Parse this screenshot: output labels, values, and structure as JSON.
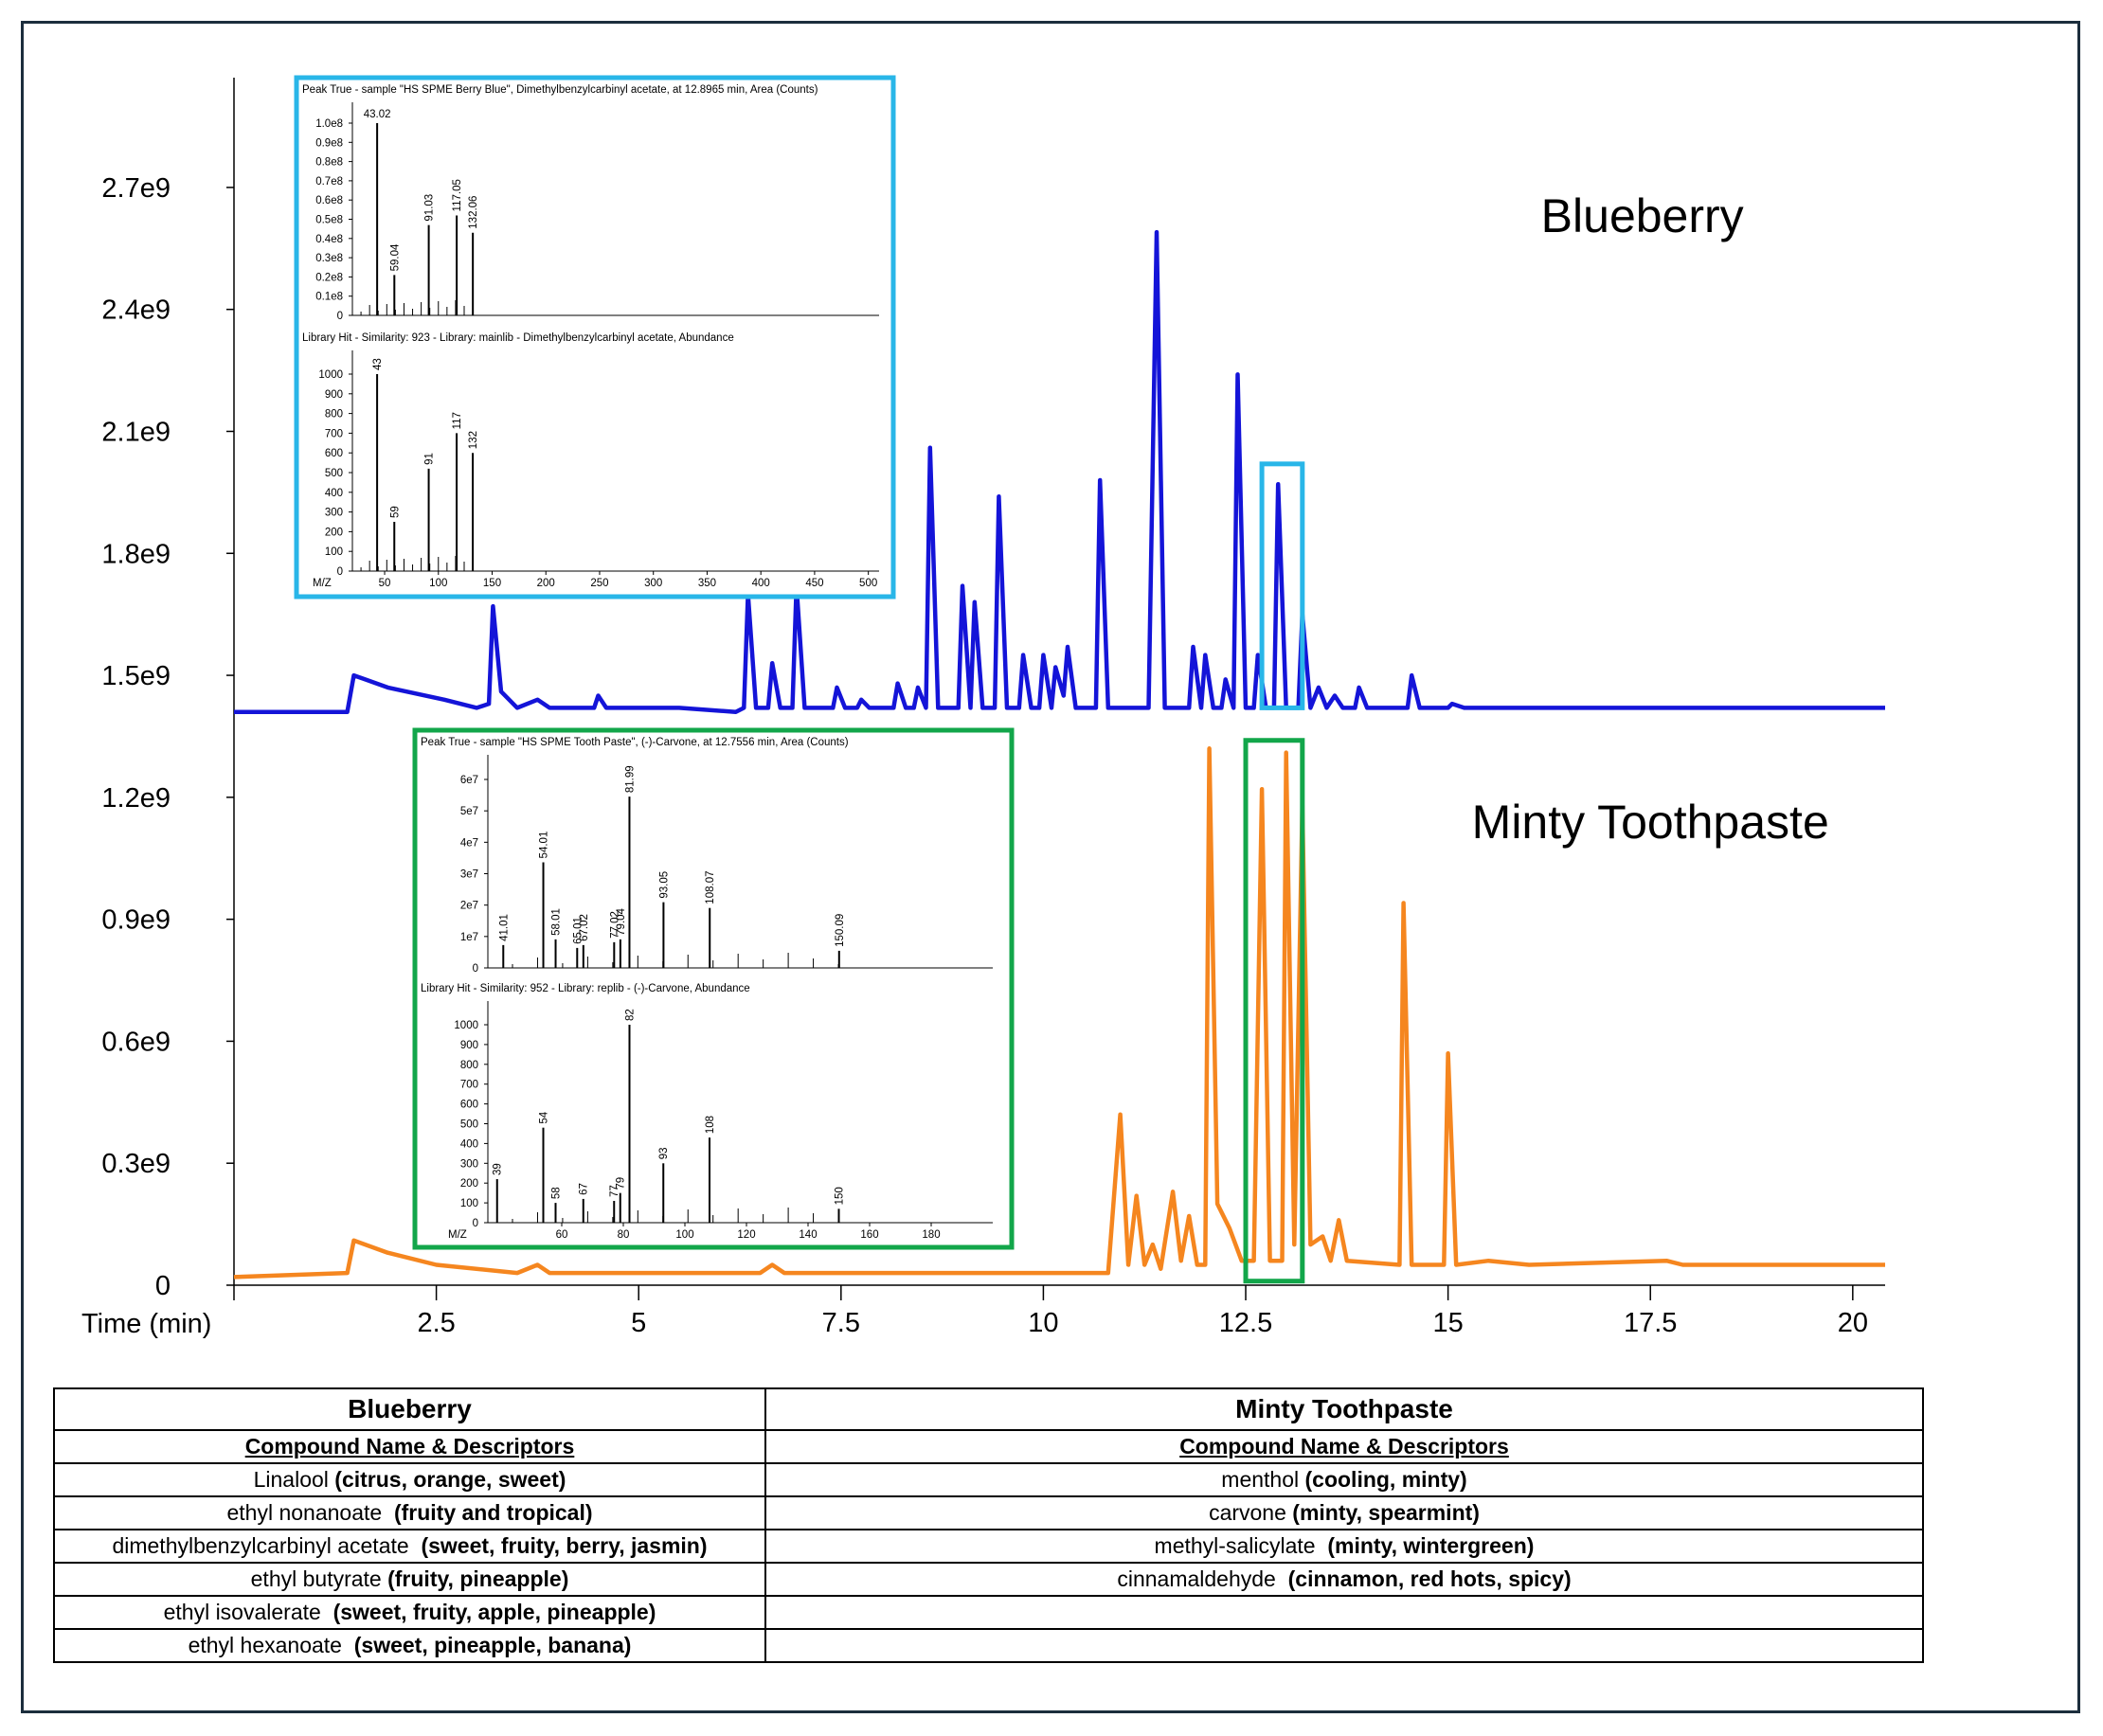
{
  "chart_data": {
    "type": "line",
    "xlabel": "Time (min)",
    "x_ticks": [
      "2.5",
      "5",
      "7.5",
      "10",
      "12.5",
      "15",
      "17.5",
      "20"
    ],
    "y_ticks": [
      "0",
      "0.3e9",
      "0.6e9",
      "0.9e9",
      "1.2e9",
      "1.5e9",
      "1.8e9",
      "2.1e9",
      "2.4e9",
      "2.7e9"
    ],
    "xlim": [
      0,
      20.4
    ],
    "ylim": [
      0,
      2970000000.0
    ],
    "annotations": [
      {
        "text": "Blueberry",
        "x": 17.4,
        "y": 2590000000.0
      },
      {
        "text": "Minty Toothpaste",
        "x": 17.5,
        "y": 1100000000.0
      }
    ],
    "highlight_boxes": [
      {
        "color": "#29b6e8",
        "x0": 12.7,
        "x1": 13.2,
        "y0": 1420000000.0,
        "y1": 2020000000.0
      },
      {
        "color": "#12a64a",
        "x0": 12.5,
        "x1": 13.2,
        "y0": 10000000.0,
        "y1": 1340000000.0
      }
    ],
    "series": [
      {
        "color": "#1414d8",
        "points": [
          [
            0,
            1410000000.0
          ],
          [
            1.4,
            1410000000.0
          ],
          [
            1.48,
            1500000000.0
          ],
          [
            1.9,
            1470000000.0
          ],
          [
            2.6,
            1440000000.0
          ],
          [
            3.0,
            1420000000.0
          ],
          [
            3.15,
            1430000000.0
          ],
          [
            3.2,
            1670000000.0
          ],
          [
            3.3,
            1460000000.0
          ],
          [
            3.5,
            1420000000.0
          ],
          [
            3.75,
            1440000000.0
          ],
          [
            3.9,
            1420000000.0
          ],
          [
            4.45,
            1420000000.0
          ],
          [
            4.5,
            1450000000.0
          ],
          [
            4.6,
            1420000000.0
          ],
          [
            5.5,
            1420000000.0
          ],
          [
            6.2,
            1410000000.0
          ],
          [
            6.3,
            1420000000.0
          ],
          [
            6.35,
            1700000000.0
          ],
          [
            6.45,
            1420000000.0
          ],
          [
            6.6,
            1420000000.0
          ],
          [
            6.65,
            1530000000.0
          ],
          [
            6.75,
            1420000000.0
          ],
          [
            6.9,
            1420000000.0
          ],
          [
            6.95,
            1720000000.0
          ],
          [
            7.05,
            1420000000.0
          ],
          [
            7.4,
            1420000000.0
          ],
          [
            7.45,
            1470000000.0
          ],
          [
            7.55,
            1420000000.0
          ],
          [
            7.7,
            1420000000.0
          ],
          [
            7.75,
            1440000000.0
          ],
          [
            7.85,
            1420000000.0
          ],
          [
            8.15,
            1420000000.0
          ],
          [
            8.2,
            1480000000.0
          ],
          [
            8.3,
            1420000000.0
          ],
          [
            8.4,
            1420000000.0
          ],
          [
            8.45,
            1470000000.0
          ],
          [
            8.55,
            1420000000.0
          ],
          [
            8.6,
            2060000000.0
          ],
          [
            8.7,
            1420000000.0
          ],
          [
            8.95,
            1420000000.0
          ],
          [
            9.0,
            1720000000.0
          ],
          [
            9.1,
            1420000000.0
          ],
          [
            9.15,
            1680000000.0
          ],
          [
            9.25,
            1420000000.0
          ],
          [
            9.4,
            1420000000.0
          ],
          [
            9.45,
            1940000000.0
          ],
          [
            9.55,
            1420000000.0
          ],
          [
            9.7,
            1420000000.0
          ],
          [
            9.75,
            1550000000.0
          ],
          [
            9.85,
            1420000000.0
          ],
          [
            9.95,
            1420000000.0
          ],
          [
            10.0,
            1550000000.0
          ],
          [
            10.1,
            1420000000.0
          ],
          [
            10.15,
            1520000000.0
          ],
          [
            10.25,
            1450000000.0
          ],
          [
            10.3,
            1570000000.0
          ],
          [
            10.4,
            1420000000.0
          ],
          [
            10.65,
            1420000000.0
          ],
          [
            10.7,
            1980000000.0
          ],
          [
            10.8,
            1420000000.0
          ],
          [
            11.3,
            1420000000.0
          ],
          [
            11.4,
            2590000000.0
          ],
          [
            11.5,
            1420000000.0
          ],
          [
            11.8,
            1420000000.0
          ],
          [
            11.85,
            1570000000.0
          ],
          [
            11.95,
            1420000000.0
          ],
          [
            12.0,
            1550000000.0
          ],
          [
            12.1,
            1420000000.0
          ],
          [
            12.2,
            1420000000.0
          ],
          [
            12.25,
            1490000000.0
          ],
          [
            12.35,
            1420000000.0
          ],
          [
            12.4,
            2240000000.0
          ],
          [
            12.5,
            1420000000.0
          ],
          [
            12.6,
            1420000000.0
          ],
          [
            12.65,
            1550000000.0
          ],
          [
            12.75,
            1420000000.0
          ],
          [
            12.85,
            1420000000.0
          ],
          [
            12.9,
            1970000000.0
          ],
          [
            13.0,
            1420000000.0
          ],
          [
            13.15,
            1420000000.0
          ],
          [
            13.2,
            1650000000.0
          ],
          [
            13.3,
            1420000000.0
          ],
          [
            13.4,
            1470000000.0
          ],
          [
            13.5,
            1420000000.0
          ],
          [
            13.6,
            1450000000.0
          ],
          [
            13.7,
            1420000000.0
          ],
          [
            13.85,
            1420000000.0
          ],
          [
            13.9,
            1470000000.0
          ],
          [
            14.0,
            1420000000.0
          ],
          [
            14.5,
            1420000000.0
          ],
          [
            14.55,
            1500000000.0
          ],
          [
            14.65,
            1420000000.0
          ],
          [
            15.0,
            1420000000.0
          ],
          [
            15.05,
            1430000000.0
          ],
          [
            15.2,
            1420000000.0
          ],
          [
            20.4,
            1420000000.0
          ]
        ]
      },
      {
        "color": "#f5861f",
        "points": [
          [
            0,
            20000000.0
          ],
          [
            1.4,
            30000000.0
          ],
          [
            1.48,
            110000000.0
          ],
          [
            1.9,
            80000000.0
          ],
          [
            2.5,
            50000000.0
          ],
          [
            3.5,
            30000000.0
          ],
          [
            3.75,
            50000000.0
          ],
          [
            3.9,
            30000000.0
          ],
          [
            5.0,
            30000000.0
          ],
          [
            6.5,
            30000000.0
          ],
          [
            6.65,
            50000000.0
          ],
          [
            6.8,
            30000000.0
          ],
          [
            9.5,
            30000000.0
          ],
          [
            10.8,
            30000000.0
          ],
          [
            10.95,
            420000000.0
          ],
          [
            11.05,
            50000000.0
          ],
          [
            11.15,
            220000000.0
          ],
          [
            11.25,
            50000000.0
          ],
          [
            11.35,
            100000000.0
          ],
          [
            11.45,
            40000000.0
          ],
          [
            11.6,
            230000000.0
          ],
          [
            11.7,
            60000000.0
          ],
          [
            11.8,
            170000000.0
          ],
          [
            11.9,
            50000000.0
          ],
          [
            12.0,
            50000000.0
          ],
          [
            12.05,
            1320000000.0
          ],
          [
            12.15,
            200000000.0
          ],
          [
            12.3,
            140000000.0
          ],
          [
            12.45,
            60000000.0
          ],
          [
            12.6,
            60000000.0
          ],
          [
            12.7,
            1220000000.0
          ],
          [
            12.8,
            60000000.0
          ],
          [
            12.95,
            60000000.0
          ],
          [
            13.0,
            1310000000.0
          ],
          [
            13.1,
            100000000.0
          ],
          [
            13.2,
            1180000000.0
          ],
          [
            13.3,
            100000000.0
          ],
          [
            13.45,
            120000000.0
          ],
          [
            13.55,
            60000000.0
          ],
          [
            13.65,
            160000000.0
          ],
          [
            13.75,
            60000000.0
          ],
          [
            14.4,
            50000000.0
          ],
          [
            14.45,
            940000000.0
          ],
          [
            14.55,
            50000000.0
          ],
          [
            14.95,
            50000000.0
          ],
          [
            15.0,
            570000000.0
          ],
          [
            15.1,
            50000000.0
          ],
          [
            15.5,
            60000000.0
          ],
          [
            16.0,
            50000000.0
          ],
          [
            17.7,
            60000000.0
          ],
          [
            17.9,
            50000000.0
          ],
          [
            20.4,
            50000000.0
          ]
        ]
      }
    ]
  },
  "inset_blue": {
    "color": "#29b6e8",
    "top_title": "Peak True - sample \"HS SPME Berry Blue\", Dimethylbenzylcarbinyl acetate, at 12.8965 min, Area (Counts)",
    "top_y_ticks": [
      "1.0e8",
      "0.9e8",
      "0.8e8",
      "0.7e8",
      "0.6e8",
      "0.5e8",
      "0.4e8",
      "0.3e8",
      "0.2e8",
      "0.1e8",
      "0"
    ],
    "top_peaks": [
      [
        43.02,
        1.0
      ],
      [
        59.04,
        0.21
      ],
      [
        91.03,
        0.47
      ],
      [
        117.05,
        0.52
      ],
      [
        132.06,
        0.43
      ]
    ],
    "top_ymax": 1.0,
    "bottom_title": "Library Hit - Similarity: 923 - Library: mainlib - Dimethylbenzylcarbinyl acetate, Abundance",
    "bottom_y_ticks": [
      "1000",
      "900",
      "800",
      "700",
      "600",
      "500",
      "400",
      "300",
      "200",
      "100",
      "0"
    ],
    "bottom_peaks": [
      [
        43,
        1000
      ],
      [
        59,
        250
      ],
      [
        91,
        520
      ],
      [
        117,
        700
      ],
      [
        132,
        600
      ]
    ],
    "bottom_ymax": 1000,
    "x_label": "M/Z",
    "x_ticks": [
      "50",
      "100",
      "150",
      "200",
      "250",
      "300",
      "350",
      "400",
      "450",
      "500"
    ],
    "xlim": [
      20,
      510
    ]
  },
  "inset_green": {
    "color": "#12a64a",
    "top_title": "Peak True - sample \"HS SPME Tooth Paste\", (-)-Carvone, at 12.7556 min, Area (Counts)",
    "top_y_ticks": [
      "6e7",
      "5e7",
      "4e7",
      "3e7",
      "2e7",
      "1e7",
      "0"
    ],
    "top_peaks": [
      [
        41.01,
        8000000.0
      ],
      [
        54.01,
        37000000.0
      ],
      [
        58.01,
        10000000.0
      ],
      [
        65.01,
        7000000.0
      ],
      [
        67.02,
        8000000.0
      ],
      [
        77.02,
        9000000.0
      ],
      [
        79.04,
        10000000.0
      ],
      [
        81.99,
        60000000.0
      ],
      [
        93.05,
        23000000.0
      ],
      [
        108.07,
        21000000.0
      ],
      [
        150.09,
        6000000.0
      ]
    ],
    "top_ymax": 66000000.0,
    "bottom_title": "Library Hit - Similarity: 952 - Library: replib - (-)-Carvone, Abundance",
    "bottom_y_ticks": [
      "1000",
      "900",
      "800",
      "700",
      "600",
      "500",
      "400",
      "300",
      "200",
      "100",
      "0"
    ],
    "bottom_peaks": [
      [
        39,
        220
      ],
      [
        54,
        480
      ],
      [
        58,
        100
      ],
      [
        67,
        120
      ],
      [
        77,
        110
      ],
      [
        79,
        150
      ],
      [
        82,
        1000
      ],
      [
        93,
        300
      ],
      [
        108,
        430
      ],
      [
        150,
        70
      ]
    ],
    "bottom_ymax": 1000,
    "x_label": "M/Z",
    "x_ticks": [
      "60",
      "80",
      "100",
      "120",
      "140",
      "160",
      "180"
    ],
    "xlim": [
      36,
      200
    ]
  },
  "table": {
    "left_header": "Blueberry",
    "right_header": "Minty Toothpaste",
    "sub_header": "Compound Name & Descriptors",
    "rows": [
      {
        "left_name": "Linalool ",
        "left_desc": "(citrus, orange, sweet)",
        "right_name": "menthol ",
        "right_desc": "(cooling, minty)"
      },
      {
        "left_name": "ethyl nonanoate  ",
        "left_desc": "(fruity and tropical)",
        "right_name": "carvone ",
        "right_desc": "(minty, spearmint)"
      },
      {
        "left_name": "dimethylbenzylcarbinyl acetate  ",
        "left_desc": "(sweet, fruity, berry, jasmin)",
        "right_name": "methyl-salicylate  ",
        "right_desc": "(minty, wintergreen)"
      },
      {
        "left_name": "ethyl butyrate ",
        "left_desc": "(fruity, pineapple)",
        "right_name": "cinnamaldehyde  ",
        "right_desc": "(cinnamon, red hots, spicy)"
      },
      {
        "left_name": "ethyl isovalerate  ",
        "left_desc": "(sweet, fruity, apple, pineapple)",
        "right_name": "",
        "right_desc": ""
      },
      {
        "left_name": "ethyl hexanoate  ",
        "left_desc": "(sweet, pineapple, banana)",
        "right_name": "",
        "right_desc": ""
      }
    ]
  }
}
